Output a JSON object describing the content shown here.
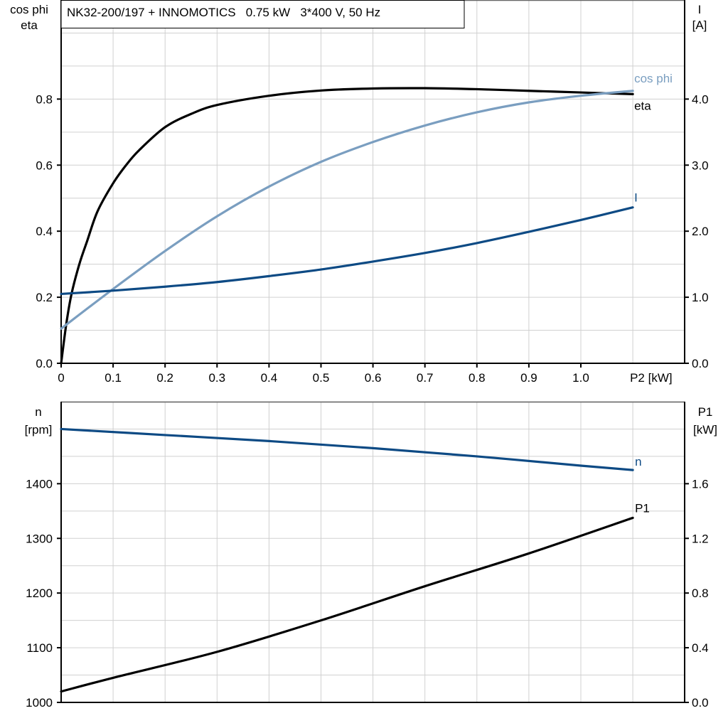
{
  "title": "NK32-200/197 + INNOMOTICS   0.75 kW   3*400 V, 50 Hz",
  "colors": {
    "eta": "#000000",
    "cos_phi": "#7a9ec0",
    "I": "#0d4a84",
    "n": "#0d4a84",
    "P1": "#000000",
    "grid": "#d0d0d0"
  },
  "chart_data": [
    {
      "type": "line",
      "xlabel": "P2 [kW]",
      "xlim": [
        0,
        1.2
      ],
      "x_ticks": [
        "0",
        "0.1",
        "0.2",
        "0.3",
        "0.4",
        "0.5",
        "0.6",
        "0.7",
        "0.8",
        "0.9",
        "1.0"
      ],
      "ylabel_left": [
        "cos phi",
        "eta"
      ],
      "ylim_left": [
        0,
        1.1
      ],
      "y_ticks_left": [
        "0.0",
        "0.2",
        "0.4",
        "0.6",
        "0.8"
      ],
      "ylabel_right": [
        "I",
        "[A]"
      ],
      "ylim_right": [
        0,
        5.5
      ],
      "y_ticks_right": [
        "0.0",
        "1.0",
        "2.0",
        "3.0",
        "4.0"
      ],
      "grid": true,
      "series": [
        {
          "name": "eta",
          "axis": "left",
          "color": "#000000",
          "x": [
            0,
            0.01,
            0.02,
            0.035,
            0.05,
            0.07,
            0.1,
            0.125,
            0.15,
            0.2,
            0.25,
            0.3,
            0.4,
            0.5,
            0.6,
            0.7,
            0.8,
            0.9,
            1.0,
            1.1
          ],
          "y": [
            0,
            0.12,
            0.21,
            0.3,
            0.37,
            0.46,
            0.545,
            0.6,
            0.645,
            0.715,
            0.755,
            0.782,
            0.81,
            0.826,
            0.832,
            0.833,
            0.83,
            0.825,
            0.82,
            0.815
          ]
        },
        {
          "name": "cos phi",
          "axis": "left",
          "color": "#7a9ec0",
          "x": [
            0,
            0.1,
            0.2,
            0.3,
            0.4,
            0.5,
            0.6,
            0.7,
            0.8,
            0.9,
            1.0,
            1.1
          ],
          "y": [
            0.105,
            0.225,
            0.34,
            0.445,
            0.535,
            0.61,
            0.67,
            0.72,
            0.76,
            0.79,
            0.81,
            0.825
          ]
        },
        {
          "name": "I",
          "axis": "right",
          "color": "#0d4a84",
          "x": [
            0,
            0.1,
            0.2,
            0.3,
            0.4,
            0.5,
            0.6,
            0.7,
            0.8,
            0.9,
            1.0,
            1.1
          ],
          "y": [
            1.05,
            1.1,
            1.16,
            1.23,
            1.32,
            1.42,
            1.54,
            1.67,
            1.82,
            1.99,
            2.17,
            2.36
          ]
        }
      ]
    },
    {
      "type": "line",
      "xlim": [
        0,
        1.2
      ],
      "ylabel_left": [
        "n",
        "[rpm]"
      ],
      "ylim_left": [
        1000,
        1550
      ],
      "y_ticks_left": [
        "1000",
        "1100",
        "1200",
        "1300",
        "1400"
      ],
      "ylabel_right": [
        "P1",
        "[kW]"
      ],
      "ylim_right": [
        0,
        2.2
      ],
      "y_ticks_right": [
        "0.0",
        "0.4",
        "0.8",
        "1.2",
        "1.6"
      ],
      "grid": true,
      "series": [
        {
          "name": "n",
          "axis": "left",
          "color": "#0d4a84",
          "x": [
            0,
            0.2,
            0.4,
            0.6,
            0.8,
            1.0,
            1.1
          ],
          "y": [
            1500,
            1489,
            1478,
            1465,
            1450,
            1433,
            1425
          ]
        },
        {
          "name": "P1",
          "axis": "right",
          "color": "#000000",
          "x": [
            0,
            0.1,
            0.3,
            0.5,
            0.7,
            0.9,
            1.1
          ],
          "y": [
            0.08,
            0.18,
            0.37,
            0.6,
            0.85,
            1.09,
            1.35
          ]
        }
      ]
    }
  ]
}
